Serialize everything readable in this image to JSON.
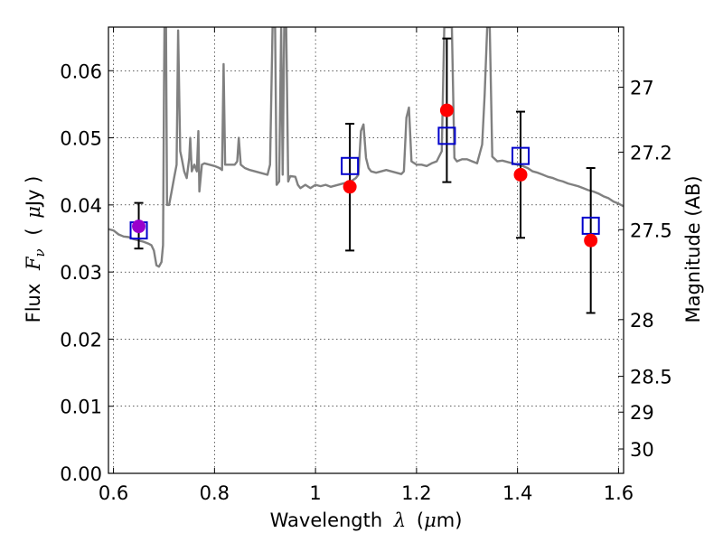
{
  "chart_data": {
    "type": "line",
    "xlabel": {
      "prefix": "Wavelength",
      "symbol": "λ",
      "unit_open": "(",
      "unit_mu": "μ",
      "unit_rest": "m)"
    },
    "ylabel_left": {
      "prefix": "Flux",
      "symbol": "F",
      "symbol_sub": "ν",
      "unit_open": "(",
      "unit_mu": "μ",
      "unit_rest": "Jy )"
    },
    "ylabel_right": "Magnitude (AB)",
    "xlim": [
      0.59,
      1.61
    ],
    "ylim": [
      0.0,
      0.0665
    ],
    "grid": true,
    "x_ticks": [
      "0.6",
      "0.8",
      "1",
      "1.2",
      "1.4",
      "1.6"
    ],
    "x_tick_values": [
      0.6,
      0.8,
      1.0,
      1.2,
      1.4,
      1.6
    ],
    "y_ticks": [
      "0.00",
      "0.01",
      "0.02",
      "0.03",
      "0.04",
      "0.05",
      "0.06"
    ],
    "y_tick_values": [
      0.0,
      0.01,
      0.02,
      0.03,
      0.04,
      0.05,
      0.06
    ],
    "right_axis": {
      "ticks": [
        "27",
        "27.2",
        "27.5",
        "28",
        "28.5",
        "29",
        "30"
      ],
      "tick_values": [
        27.0,
        27.2,
        27.5,
        28.0,
        28.5,
        29.0,
        30.0
      ],
      "zero_point_jy": 3631
    },
    "series": [
      {
        "kind": "spectrum",
        "color": "#808080",
        "points": [
          [
            0.59,
            0.0364
          ],
          [
            0.6,
            0.0362
          ],
          [
            0.61,
            0.0356
          ],
          [
            0.62,
            0.0353
          ],
          [
            0.63,
            0.0352
          ],
          [
            0.64,
            0.0349
          ],
          [
            0.65,
            0.0347
          ],
          [
            0.66,
            0.0345
          ],
          [
            0.67,
            0.0342
          ],
          [
            0.675,
            0.034
          ],
          [
            0.68,
            0.0332
          ],
          [
            0.685,
            0.031
          ],
          [
            0.69,
            0.0308
          ],
          [
            0.695,
            0.0315
          ],
          [
            0.698,
            0.034
          ],
          [
            0.7,
            0.058
          ],
          [
            0.701,
            0.0665
          ],
          [
            0.704,
            0.0665
          ],
          [
            0.706,
            0.04
          ],
          [
            0.71,
            0.04
          ],
          [
            0.715,
            0.042
          ],
          [
            0.72,
            0.044
          ],
          [
            0.725,
            0.046
          ],
          [
            0.728,
            0.066
          ],
          [
            0.732,
            0.048
          ],
          [
            0.735,
            0.047
          ],
          [
            0.74,
            0.045
          ],
          [
            0.745,
            0.044
          ],
          [
            0.75,
            0.047
          ],
          [
            0.752,
            0.05
          ],
          [
            0.755,
            0.045
          ],
          [
            0.76,
            0.046
          ],
          [
            0.765,
            0.045
          ],
          [
            0.768,
            0.051
          ],
          [
            0.77,
            0.042
          ],
          [
            0.775,
            0.046
          ],
          [
            0.78,
            0.0462
          ],
          [
            0.79,
            0.046
          ],
          [
            0.8,
            0.0458
          ],
          [
            0.81,
            0.0455
          ],
          [
            0.815,
            0.0452
          ],
          [
            0.818,
            0.061
          ],
          [
            0.821,
            0.046
          ],
          [
            0.83,
            0.046
          ],
          [
            0.84,
            0.046
          ],
          [
            0.845,
            0.0465
          ],
          [
            0.848,
            0.05
          ],
          [
            0.852,
            0.046
          ],
          [
            0.86,
            0.0455
          ],
          [
            0.87,
            0.0452
          ],
          [
            0.88,
            0.045
          ],
          [
            0.89,
            0.0448
          ],
          [
            0.9,
            0.0446
          ],
          [
            0.905,
            0.0445
          ],
          [
            0.91,
            0.046
          ],
          [
            0.915,
            0.0665
          ],
          [
            0.92,
            0.0665
          ],
          [
            0.923,
            0.043
          ],
          [
            0.928,
            0.0435
          ],
          [
            0.932,
            0.0665
          ],
          [
            0.935,
            0.0445
          ],
          [
            0.938,
            0.0665
          ],
          [
            0.942,
            0.0665
          ],
          [
            0.946,
            0.0435
          ],
          [
            0.95,
            0.0443
          ],
          [
            0.96,
            0.0442
          ],
          [
            0.965,
            0.043
          ],
          [
            0.97,
            0.0425
          ],
          [
            0.98,
            0.043
          ],
          [
            0.99,
            0.0425
          ],
          [
            1.0,
            0.043
          ],
          [
            1.01,
            0.0428
          ],
          [
            1.02,
            0.043
          ],
          [
            1.03,
            0.0427
          ],
          [
            1.04,
            0.0429
          ],
          [
            1.05,
            0.0431
          ],
          [
            1.06,
            0.0433
          ],
          [
            1.07,
            0.0435
          ],
          [
            1.08,
            0.044
          ],
          [
            1.085,
            0.0445
          ],
          [
            1.09,
            0.051
          ],
          [
            1.095,
            0.052
          ],
          [
            1.1,
            0.047
          ],
          [
            1.105,
            0.0455
          ],
          [
            1.11,
            0.045
          ],
          [
            1.12,
            0.0448
          ],
          [
            1.13,
            0.045
          ],
          [
            1.14,
            0.0452
          ],
          [
            1.15,
            0.045
          ],
          [
            1.16,
            0.0448
          ],
          [
            1.17,
            0.0446
          ],
          [
            1.175,
            0.045
          ],
          [
            1.18,
            0.053
          ],
          [
            1.185,
            0.0545
          ],
          [
            1.19,
            0.0465
          ],
          [
            1.2,
            0.046
          ],
          [
            1.21,
            0.046
          ],
          [
            1.22,
            0.0458
          ],
          [
            1.23,
            0.0462
          ],
          [
            1.24,
            0.0465
          ],
          [
            1.25,
            0.048
          ],
          [
            1.255,
            0.0665
          ],
          [
            1.262,
            0.0665
          ],
          [
            1.265,
            0.0665
          ],
          [
            1.27,
            0.0665
          ],
          [
            1.275,
            0.047
          ],
          [
            1.28,
            0.0465
          ],
          [
            1.29,
            0.0468
          ],
          [
            1.3,
            0.0468
          ],
          [
            1.31,
            0.0465
          ],
          [
            1.32,
            0.0462
          ],
          [
            1.33,
            0.049
          ],
          [
            1.335,
            0.0565
          ],
          [
            1.34,
            0.0665
          ],
          [
            1.345,
            0.0665
          ],
          [
            1.35,
            0.0472
          ],
          [
            1.36,
            0.0465
          ],
          [
            1.37,
            0.0466
          ],
          [
            1.38,
            0.0464
          ],
          [
            1.39,
            0.0462
          ],
          [
            1.4,
            0.046
          ],
          [
            1.41,
            0.0458
          ],
          [
            1.42,
            0.0455
          ],
          [
            1.43,
            0.045
          ],
          [
            1.44,
            0.0448
          ],
          [
            1.45,
            0.0445
          ],
          [
            1.46,
            0.0442
          ],
          [
            1.47,
            0.044
          ],
          [
            1.48,
            0.0437
          ],
          [
            1.49,
            0.0435
          ],
          [
            1.5,
            0.0432
          ],
          [
            1.51,
            0.043
          ],
          [
            1.52,
            0.0428
          ],
          [
            1.53,
            0.0425
          ],
          [
            1.54,
            0.0422
          ],
          [
            1.55,
            0.042
          ],
          [
            1.56,
            0.0417
          ],
          [
            1.57,
            0.0413
          ],
          [
            1.58,
            0.041
          ],
          [
            1.59,
            0.0405
          ],
          [
            1.6,
            0.0402
          ],
          [
            1.61,
            0.0398
          ]
        ]
      },
      {
        "kind": "observed",
        "marker": "circle",
        "color": "#ff0000",
        "points": [
          {
            "x": 0.65,
            "y": 0.0368,
            "yerr_lo": 0.0335,
            "yerr_hi": 0.0403,
            "color": "#9900cc"
          },
          {
            "x": 1.068,
            "y": 0.0427,
            "yerr_lo": 0.0332,
            "yerr_hi": 0.0521
          },
          {
            "x": 1.26,
            "y": 0.0541,
            "yerr_lo": 0.0434,
            "yerr_hi": 0.0648
          },
          {
            "x": 1.406,
            "y": 0.0445,
            "yerr_lo": 0.0351,
            "yerr_hi": 0.0539
          },
          {
            "x": 1.545,
            "y": 0.0347,
            "yerr_lo": 0.0239,
            "yerr_hi": 0.0455
          }
        ]
      },
      {
        "kind": "model",
        "marker": "square",
        "color": "#0000cc",
        "points": [
          {
            "x": 0.65,
            "y": 0.0362
          },
          {
            "x": 1.068,
            "y": 0.0458
          },
          {
            "x": 1.26,
            "y": 0.0503
          },
          {
            "x": 1.406,
            "y": 0.0473
          },
          {
            "x": 1.545,
            "y": 0.0369
          }
        ]
      }
    ]
  }
}
